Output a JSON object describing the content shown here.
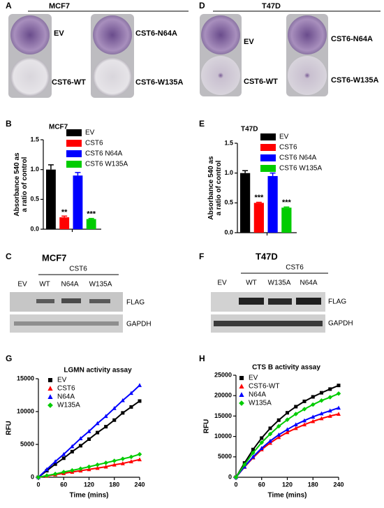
{
  "panels": {
    "A": {
      "label": "A",
      "title": "MCF7",
      "labels": [
        "EV",
        "CST6-WT",
        "CST6-N64A",
        "CST6-W135A"
      ]
    },
    "D": {
      "label": "D",
      "title": "T47D",
      "labels": [
        "EV",
        "CST6-WT",
        "CST6-N64A",
        "CST6-W135A"
      ]
    },
    "B": {
      "label": "B"
    },
    "E": {
      "label": "E"
    },
    "C": {
      "label": "C",
      "title": "MCF7",
      "group": "CST6",
      "lanes": [
        "EV",
        "WT",
        "N64A",
        "W135A"
      ],
      "bands": [
        "FLAG",
        "GAPDH"
      ]
    },
    "F": {
      "label": "F",
      "title": "T47D",
      "group": "CST6",
      "lanes": [
        "EV",
        "WT",
        "W135A",
        "N64A"
      ],
      "bands": [
        "FLAG",
        "GAPDH"
      ]
    },
    "G": {
      "label": "G"
    },
    "H": {
      "label": "H"
    }
  },
  "chart_data": [
    {
      "type": "bar",
      "title": "MCF7",
      "y_label": [
        "Absorbance 540 as",
        "a ratio of control"
      ],
      "categories": [
        "EV",
        "CST6",
        "CST6 N64A",
        "CST6 W135A"
      ],
      "values": [
        1.0,
        0.2,
        0.9,
        0.17
      ],
      "errors": [
        0.08,
        0.02,
        0.05,
        0.01
      ],
      "annotations": [
        null,
        "**",
        null,
        "***"
      ],
      "colors": [
        "#000000",
        "#ff0000",
        "#0000ff",
        "#00cc00"
      ],
      "ylim": [
        0,
        1.5
      ],
      "yticks": [
        {
          "value": 0,
          "label": "0.0"
        },
        0.5,
        {
          "value": 1,
          "label": "1.0"
        },
        1.5
      ]
    },
    {
      "type": "bar",
      "title": "T47D",
      "y_label": [
        "Absorbance 540 as",
        "a ratio of control"
      ],
      "categories": [
        "EV",
        "CST6",
        "CST6 N64A",
        "CST6 W135A"
      ],
      "values": [
        1.0,
        0.5,
        0.95,
        0.42
      ],
      "errors": [
        0.04,
        0.01,
        0.05,
        0.01
      ],
      "annotations": [
        null,
        "***",
        null,
        "***"
      ],
      "colors": [
        "#000000",
        "#ff0000",
        "#0000ff",
        "#00cc00"
      ],
      "ylim": [
        0,
        1.5
      ],
      "yticks": [
        {
          "value": 0,
          "label": "0.0"
        },
        0.5,
        {
          "value": 1,
          "label": "1.0"
        },
        1.5
      ]
    },
    {
      "type": "line",
      "title": "LGMN activity assay",
      "x_label": "Time (mins)",
      "y_label": [
        "RFU"
      ],
      "x": [
        0,
        20,
        40,
        60,
        80,
        100,
        120,
        140,
        160,
        180,
        200,
        220,
        240
      ],
      "series": [
        {
          "name": "EV",
          "color": "#000000",
          "marker": "square",
          "values": [
            0,
            1000,
            2000,
            2900,
            3900,
            4800,
            5800,
            6800,
            7700,
            8700,
            9800,
            10700,
            11600
          ]
        },
        {
          "name": "CST6",
          "color": "#ff0000",
          "marker": "triangle",
          "values": [
            0,
            200,
            400,
            600,
            800,
            1000,
            1200,
            1400,
            1600,
            1900,
            2100,
            2400,
            2700
          ]
        },
        {
          "name": "N64A",
          "color": "#0000ff",
          "marker": "triangle",
          "values": [
            0,
            1200,
            2400,
            3500,
            4700,
            5900,
            7000,
            8200,
            9300,
            10500,
            11700,
            12800,
            14000
          ]
        },
        {
          "name": "W135A",
          "color": "#00cc00",
          "marker": "diamond",
          "values": [
            0,
            250,
            500,
            800,
            1050,
            1300,
            1600,
            1900,
            2200,
            2500,
            2800,
            3100,
            3500
          ]
        }
      ],
      "xlim": [
        0,
        240
      ],
      "xticks": [
        0,
        60,
        120,
        180,
        240
      ],
      "ylim": [
        0,
        15000
      ],
      "yticks": [
        0,
        5000,
        10000,
        15000
      ]
    },
    {
      "type": "line",
      "title": "CTS B activity assay",
      "x_label": "Time (mins)",
      "y_label": [
        "RFU"
      ],
      "x": [
        0,
        20,
        40,
        60,
        80,
        100,
        120,
        140,
        160,
        180,
        200,
        220,
        240
      ],
      "series": [
        {
          "name": "EV",
          "color": "#000000",
          "marker": "square",
          "values": [
            0,
            3500,
            6800,
            9600,
            12000,
            14000,
            15800,
            17300,
            18600,
            19700,
            20700,
            21600,
            22500
          ]
        },
        {
          "name": "CST6-WT",
          "color": "#ff0000",
          "marker": "triangle",
          "values": [
            0,
            2500,
            4800,
            6800,
            8400,
            9800,
            11000,
            12000,
            12900,
            13700,
            14400,
            15000,
            15500
          ]
        },
        {
          "name": "N64A",
          "color": "#0000ff",
          "marker": "triangle",
          "values": [
            0,
            2600,
            5000,
            7100,
            8900,
            10400,
            11700,
            12900,
            13900,
            14800,
            15600,
            16300,
            17000
          ]
        },
        {
          "name": "W135A",
          "color": "#00cc00",
          "marker": "diamond",
          "values": [
            0,
            3100,
            6000,
            8500,
            10600,
            12500,
            14100,
            15500,
            16700,
            17800,
            18800,
            19600,
            20500
          ]
        }
      ],
      "xlim": [
        0,
        240
      ],
      "xticks": [
        0,
        60,
        120,
        180,
        240
      ],
      "ylim": [
        0,
        25000
      ],
      "yticks": [
        0,
        5000,
        10000,
        15000,
        20000,
        25000
      ]
    }
  ]
}
